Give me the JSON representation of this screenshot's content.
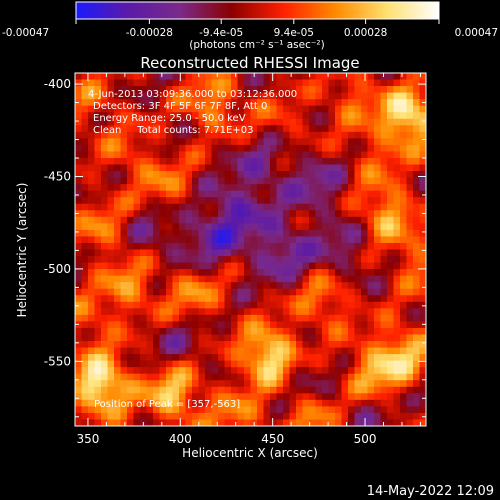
{
  "colorbar": {
    "tick_labels": [
      "-0.00047",
      "-0.00028",
      "-9.4e-05",
      "9.4e-05",
      "0.00028",
      "0.00047"
    ],
    "tick_values": [
      -0.00047,
      -0.00028,
      -9.4e-05,
      9.4e-05,
      0.00028,
      0.00047
    ],
    "range": [
      -0.00047,
      0.00047
    ],
    "units": "(photons cm⁻² s⁻¹ asec⁻²)",
    "stops": [
      "#1a1aff",
      "#5b1aa8",
      "#7a2a8a",
      "#8b0000",
      "#ff2000",
      "#ff8a00",
      "#ffe070",
      "#ffffff"
    ]
  },
  "image": {
    "title": "Reconstructed RHESSI Image",
    "info_lines": [
      "4-Jun-2013 03:09:36.000 to 03:12:36.000",
      "Detectors: 3F 4F 5F 6F 7F 8F, Att 0",
      "Energy Range: 25.0 - 50.0 keV",
      "Clean     Total counts: 7.71E+03"
    ],
    "peak_text": "Position of Peak = [357,-563]"
  },
  "chart_data": {
    "type": "heatmap",
    "title": "Reconstructed RHESSI Image",
    "xlabel": "Heliocentric X (arcsec)",
    "ylabel": "Heliocentric Y (arcsec)",
    "xlim": [
      343,
      533
    ],
    "ylim": [
      -585,
      -394
    ],
    "x_ticks": [
      350,
      400,
      450,
      500
    ],
    "y_ticks": [
      -400,
      -450,
      -500,
      -550
    ],
    "x_tick_labels": [
      "350",
      "400",
      "450",
      "500"
    ],
    "y_tick_labels": [
      "-400",
      "-450",
      "-500",
      "-550"
    ],
    "peak": [
      357,
      -563
    ],
    "colorbar_range": [
      -0.00047,
      0.00047
    ],
    "blobs": [
      {
        "x": 357,
        "y": -563,
        "v": 0.00047
      },
      {
        "x": 448,
        "y": -547,
        "v": 0.00045
      },
      {
        "x": 524,
        "y": -418,
        "v": 0.00044
      },
      {
        "x": 396,
        "y": -568,
        "v": 0.00034
      },
      {
        "x": 512,
        "y": -470,
        "v": 0.0003
      },
      {
        "x": 520,
        "y": -545,
        "v": 0.0003
      },
      {
        "x": 504,
        "y": -558,
        "v": 0.00028
      },
      {
        "x": 417,
        "y": -410,
        "v": 0.00026
      },
      {
        "x": 372,
        "y": -510,
        "v": 0.00024
      },
      {
        "x": 408,
        "y": -514,
        "v": 0.00022
      },
      {
        "x": 357,
        "y": -478,
        "v": 0.0002
      },
      {
        "x": 478,
        "y": -518,
        "v": 0.00022
      },
      {
        "x": 392,
        "y": -455,
        "v": 0.00018
      },
      {
        "x": 530,
        "y": -498,
        "v": 0.0002
      },
      {
        "x": 470,
        "y": -580,
        "v": 0.00022
      },
      {
        "x": 493,
        "y": -407,
        "v": 0.00018
      },
      {
        "x": 352,
        "y": -410,
        "v": 0.00016
      },
      {
        "x": 430,
        "y": -580,
        "v": 0.0002
      },
      {
        "x": 372,
        "y": -438,
        "v": 0.00014
      },
      {
        "x": 455,
        "y": -420,
        "v": 0.00012
      },
      {
        "x": 505,
        "y": -440,
        "v": 0.00014
      },
      {
        "x": 350,
        "y": -530,
        "v": 0.00016
      },
      {
        "x": 430,
        "y": -470,
        "v": -0.00024
      },
      {
        "x": 455,
        "y": -490,
        "v": -0.00022
      },
      {
        "x": 415,
        "y": -485,
        "v": -0.00018
      },
      {
        "x": 475,
        "y": -455,
        "v": -0.00016
      },
      {
        "x": 445,
        "y": -445,
        "v": -0.00016
      },
      {
        "x": 488,
        "y": -490,
        "v": -0.00014
      },
      {
        "x": 400,
        "y": -540,
        "v": -0.0001
      },
      {
        "x": 385,
        "y": -480,
        "v": -0.00012
      },
      {
        "x": 500,
        "y": -575,
        "v": -0.0001
      },
      {
        "x": 465,
        "y": -560,
        "v": -0.00012
      }
    ]
  },
  "footer": {
    "date_text": "14-May-2022 12:09"
  }
}
